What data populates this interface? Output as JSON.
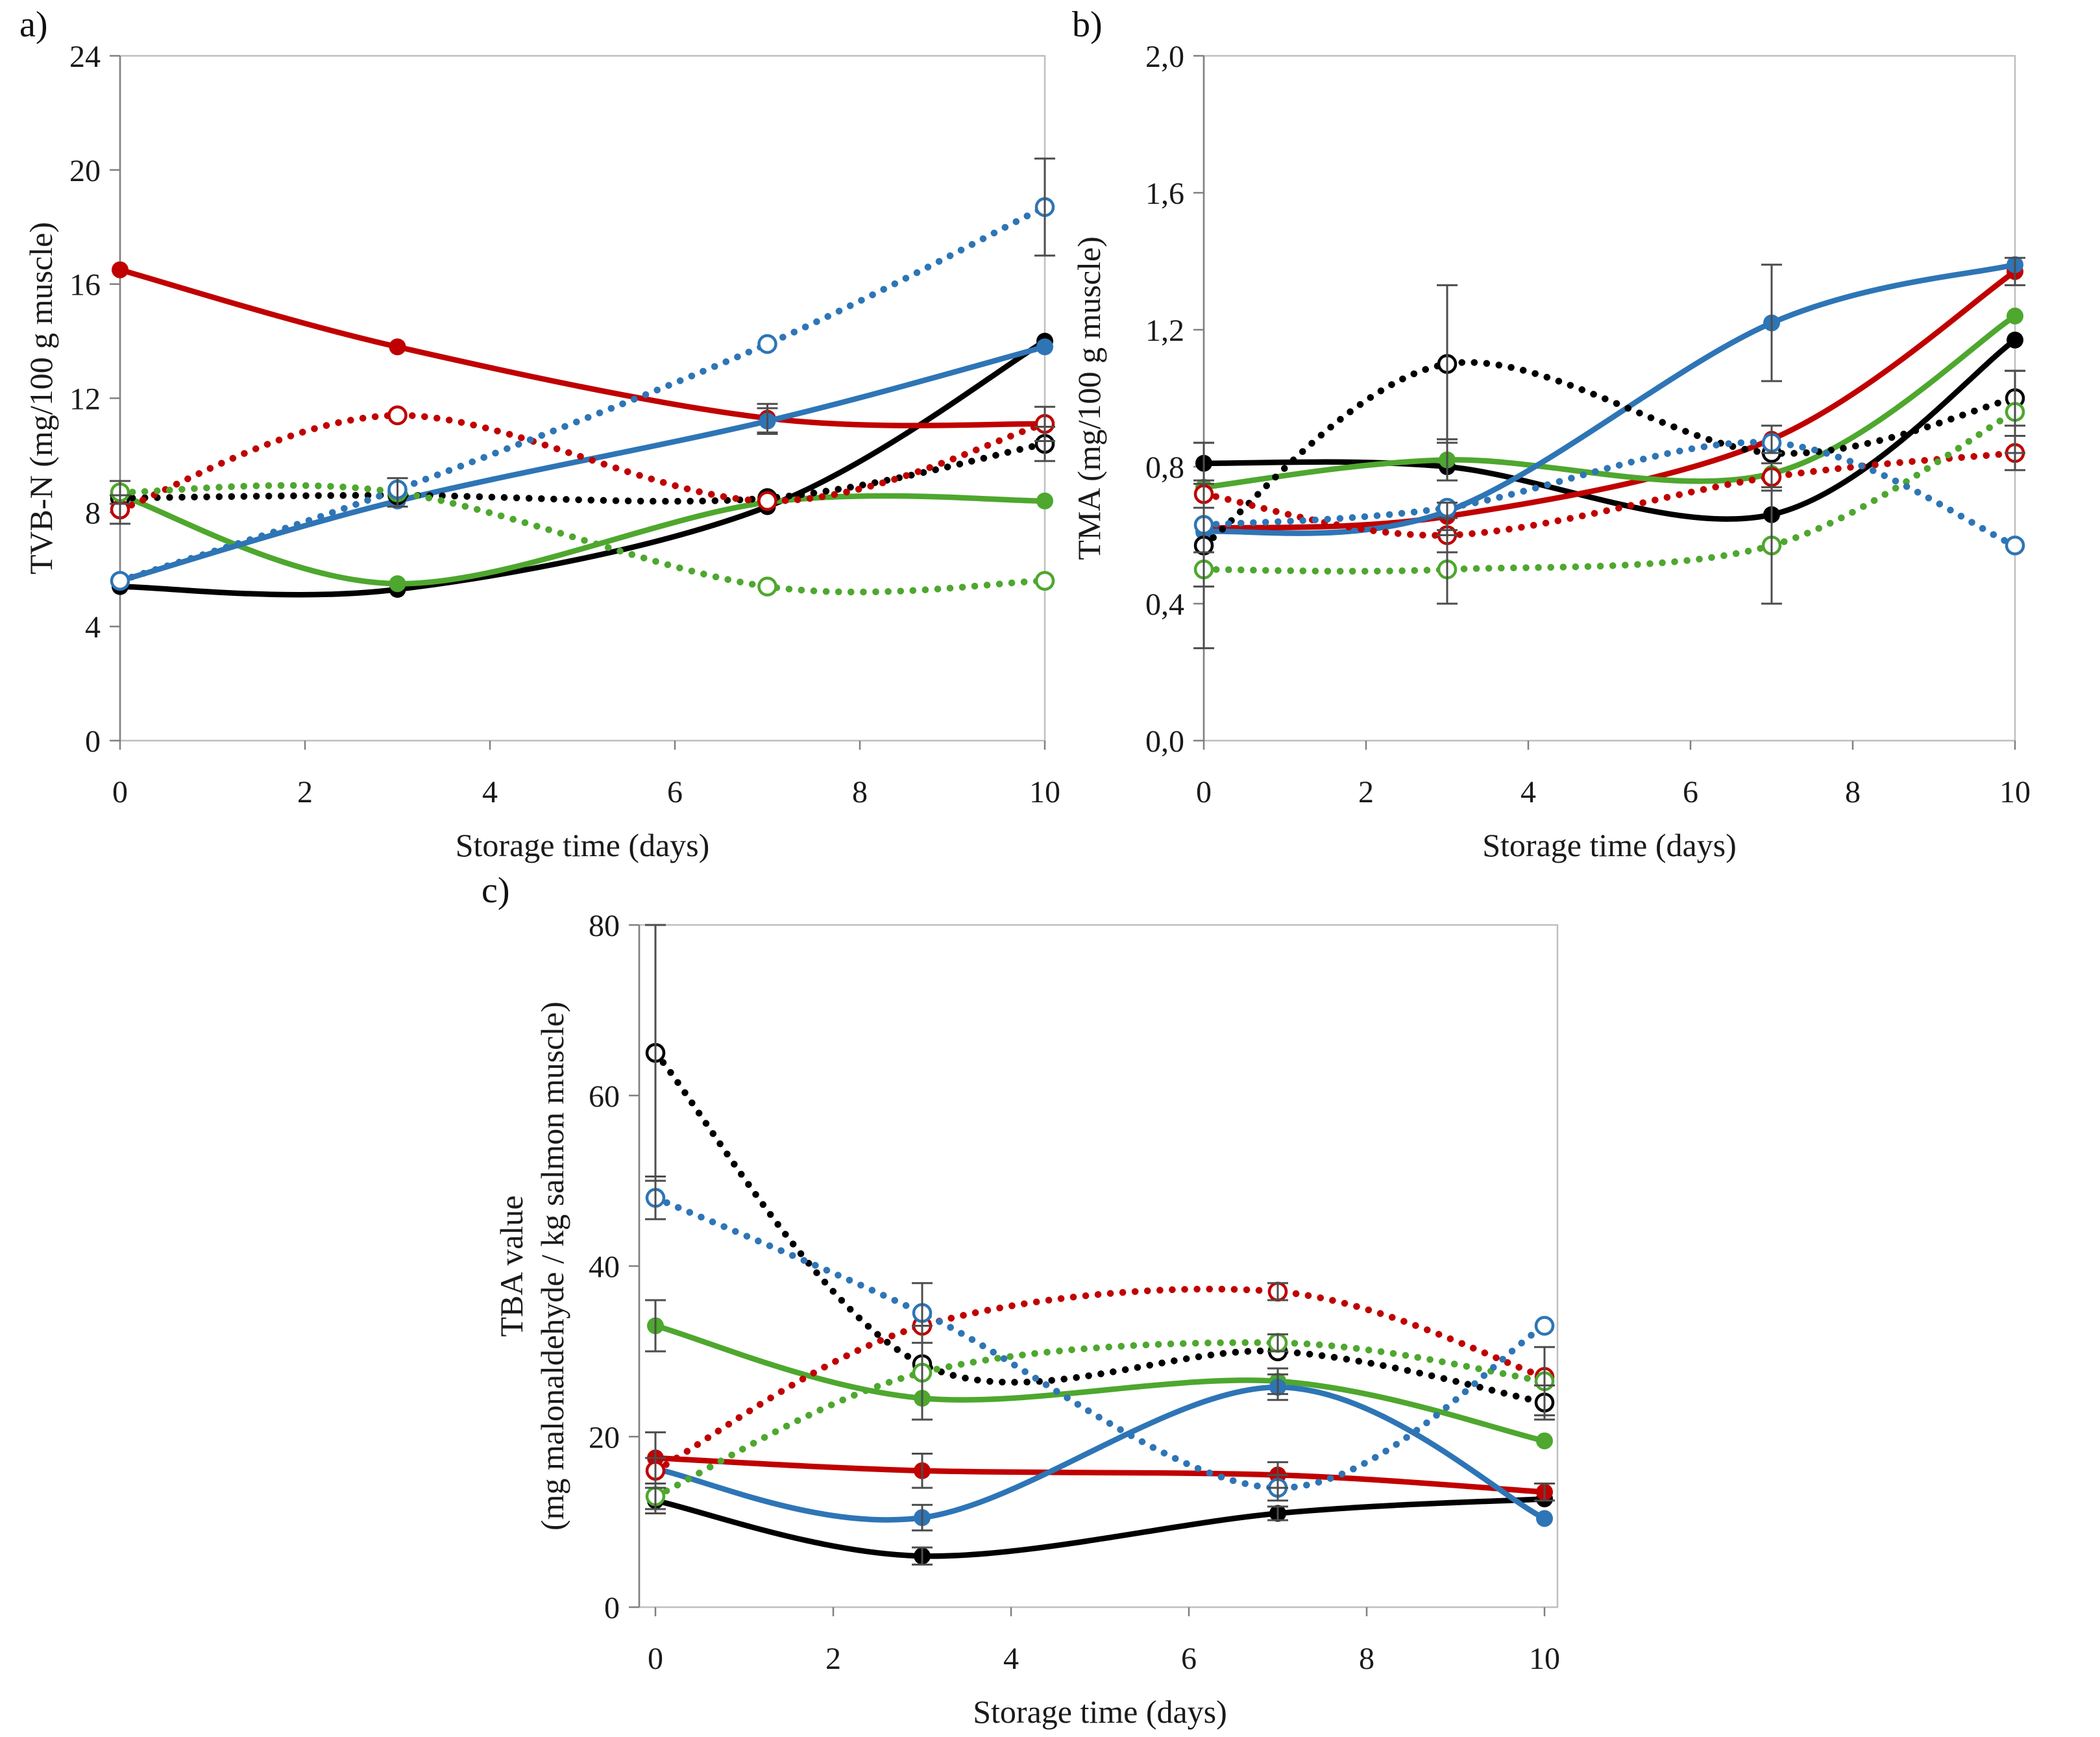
{
  "panels": [
    {
      "label": "a)"
    },
    {
      "label": "b)"
    },
    {
      "label": "c)"
    }
  ],
  "style": {
    "frame_color": "#bfbfbf",
    "axis_color": "#808080",
    "tick_text_color": "#1a1a1a",
    "error_bar_color": "#4d4d4d",
    "series_colors": {
      "black": "#000000",
      "red": "#c00000",
      "green": "#4ea72e",
      "blue": "#2e75b6"
    }
  },
  "chart_data": [
    {
      "type": "line",
      "panel": "a",
      "xlabel": "Storage time (days)",
      "ylabel": "TVB-N (mg/100 g muscle)",
      "ylabel_lines": [
        "TVB-N (mg/100 g muscle)"
      ],
      "x": [
        0,
        3,
        7,
        10
      ],
      "xlim": [
        0,
        10
      ],
      "ylim": [
        0,
        24
      ],
      "xticks": [
        0,
        2,
        4,
        6,
        8,
        10
      ],
      "xtick_labels": [
        "0",
        "2",
        "4",
        "6",
        "8",
        "10"
      ],
      "yticks": [
        0,
        4,
        8,
        12,
        16,
        20,
        24
      ],
      "ytick_labels": [
        "0",
        "4",
        "8",
        "12",
        "16",
        "20",
        "24"
      ],
      "grid": false,
      "legend": "none",
      "series": [
        {
          "name": "black-solid",
          "color": "black",
          "line": "solid",
          "marker": "filled",
          "values": [
            5.4,
            5.3,
            8.2,
            14.0
          ],
          "errors": [
            null,
            null,
            null,
            null
          ]
        },
        {
          "name": "red-solid",
          "color": "red",
          "line": "solid",
          "marker": "filled",
          "values": [
            16.5,
            13.8,
            11.3,
            11.1
          ],
          "errors": [
            null,
            null,
            0.5,
            null
          ]
        },
        {
          "name": "green-solid",
          "color": "green",
          "line": "solid",
          "marker": "filled",
          "values": [
            8.6,
            5.5,
            8.35,
            8.4
          ],
          "errors": [
            null,
            null,
            null,
            null
          ]
        },
        {
          "name": "blue-solid",
          "color": "blue",
          "line": "solid",
          "marker": "filled",
          "values": [
            5.6,
            8.4,
            11.2,
            13.8
          ],
          "errors": [
            null,
            null,
            0.45,
            null
          ]
        },
        {
          "name": "black-dotted",
          "color": "black",
          "line": "dotted",
          "marker": "open",
          "values": [
            8.5,
            8.6,
            8.5,
            10.4
          ],
          "errors": [
            null,
            null,
            null,
            0.6
          ]
        },
        {
          "name": "red-dotted",
          "color": "red",
          "line": "dotted",
          "marker": "open",
          "values": [
            8.1,
            11.4,
            8.4,
            11.1
          ],
          "errors": [
            0.5,
            null,
            null,
            0.6
          ]
        },
        {
          "name": "green-dotted",
          "color": "green",
          "line": "dotted",
          "marker": "open",
          "values": [
            8.7,
            8.7,
            5.4,
            5.6
          ],
          "errors": [
            0.4,
            0.5,
            null,
            null
          ]
        },
        {
          "name": "blue-dotted",
          "color": "blue",
          "line": "dotted",
          "marker": "open",
          "values": [
            5.6,
            8.8,
            13.9,
            18.7
          ],
          "errors": [
            null,
            null,
            null,
            1.7
          ]
        }
      ]
    },
    {
      "type": "line",
      "panel": "b",
      "xlabel": "Storage time (days)",
      "ylabel": "TMA (mg/100 g muscle)",
      "ylabel_lines": [
        "TMA (mg/100 g muscle)"
      ],
      "x": [
        0,
        3,
        7,
        10
      ],
      "xlim": [
        0,
        10
      ],
      "ylim": [
        0,
        2.0
      ],
      "xticks": [
        0,
        2,
        4,
        6,
        8,
        10
      ],
      "xtick_labels": [
        "0",
        "2",
        "4",
        "6",
        "8",
        "10"
      ],
      "yticks": [
        0,
        0.4,
        0.8,
        1.2,
        1.6,
        2.0
      ],
      "ytick_labels": [
        "0,0",
        "0,4",
        "0,8",
        "1,2",
        "1,6",
        "2,0"
      ],
      "grid": false,
      "legend": "none",
      "series": [
        {
          "name": "black-solid",
          "color": "black",
          "line": "solid",
          "marker": "filled",
          "values": [
            0.81,
            0.8,
            0.66,
            1.17
          ],
          "errors": [
            0.06,
            null,
            null,
            null
          ]
        },
        {
          "name": "red-solid",
          "color": "red",
          "line": "solid",
          "marker": "filled",
          "values": [
            0.62,
            0.655,
            0.88,
            1.37
          ],
          "errors": [
            null,
            0.04,
            0.04,
            0.04
          ]
        },
        {
          "name": "green-solid",
          "color": "green",
          "line": "solid",
          "marker": "filled",
          "values": [
            0.74,
            0.82,
            0.78,
            1.24
          ],
          "errors": [
            null,
            0.06,
            null,
            null
          ]
        },
        {
          "name": "blue-solid",
          "color": "blue",
          "line": "solid",
          "marker": "filled",
          "values": [
            0.61,
            0.67,
            1.22,
            1.39
          ],
          "errors": [
            null,
            null,
            0.17,
            null
          ]
        },
        {
          "name": "black-dotted",
          "color": "black",
          "line": "dotted",
          "marker": "open",
          "values": [
            0.57,
            1.1,
            0.84,
            1.0
          ],
          "errors": [
            0.3,
            0.23,
            null,
            0.08
          ]
        },
        {
          "name": "red-dotted",
          "color": "red",
          "line": "dotted",
          "marker": "open",
          "values": [
            0.72,
            0.6,
            0.77,
            0.84
          ],
          "errors": [
            0.04,
            0.05,
            0.04,
            0.05
          ]
        },
        {
          "name": "green-dotted",
          "color": "green",
          "line": "dotted",
          "marker": "open",
          "values": [
            0.5,
            0.5,
            0.57,
            0.96
          ],
          "errors": [
            0.05,
            0.1,
            0.17,
            0.12
          ]
        },
        {
          "name": "blue-dotted",
          "color": "blue",
          "line": "dotted",
          "marker": "open",
          "values": [
            0.63,
            0.68,
            0.87,
            0.57
          ],
          "errors": [
            null,
            null,
            null,
            null
          ]
        }
      ]
    },
    {
      "type": "line",
      "panel": "c",
      "xlabel": "Storage time (days)",
      "ylabel": "TBA value (mg malonaldehyde / kg salmon muscle)",
      "ylabel_lines": [
        "TBA value",
        "(mg malonaldehyde / kg salmon muscle)"
      ],
      "x": [
        0,
        3,
        7,
        10
      ],
      "xlim": [
        0,
        10
      ],
      "ylim": [
        0,
        80
      ],
      "xticks": [
        0,
        2,
        4,
        6,
        8,
        10
      ],
      "xtick_labels": [
        "0",
        "2",
        "4",
        "6",
        "8",
        "10"
      ],
      "yticks": [
        0,
        20,
        40,
        60,
        80
      ],
      "ytick_labels": [
        "0",
        "20",
        "40",
        "60",
        "80"
      ],
      "grid": false,
      "legend": "none",
      "series": [
        {
          "name": "black-solid",
          "color": "black",
          "line": "solid",
          "marker": "filled",
          "values": [
            12.5,
            6,
            11,
            12.7
          ],
          "errors": [
            1.5,
            1,
            0.8,
            null
          ]
        },
        {
          "name": "red-solid",
          "color": "red",
          "line": "solid",
          "marker": "filled",
          "values": [
            17.5,
            16,
            15.5,
            13.5
          ],
          "errors": [
            3,
            2,
            1.5,
            1
          ]
        },
        {
          "name": "green-solid",
          "color": "green",
          "line": "solid",
          "marker": "filled",
          "values": [
            33,
            24.5,
            26.5,
            19.5
          ],
          "errors": [
            3,
            null,
            1.5,
            null
          ]
        },
        {
          "name": "blue-solid",
          "color": "blue",
          "line": "solid",
          "marker": "filled",
          "values": [
            16.2,
            10.5,
            25.8,
            10.4
          ],
          "errors": [
            null,
            1.5,
            1.5,
            null
          ]
        },
        {
          "name": "black-dotted",
          "color": "black",
          "line": "dotted",
          "marker": "open",
          "values": [
            65,
            28.5,
            30,
            24
          ],
          "errors": [
            15,
            null,
            null,
            2
          ]
        },
        {
          "name": "red-dotted",
          "color": "red",
          "line": "dotted",
          "marker": "open",
          "values": [
            16,
            33,
            37,
            27
          ],
          "errors": [
            1.5,
            null,
            1,
            null
          ]
        },
        {
          "name": "green-dotted",
          "color": "green",
          "line": "dotted",
          "marker": "open",
          "values": [
            13,
            27.5,
            31,
            26.5
          ],
          "errors": [
            1.5,
            5.5,
            1,
            4
          ]
        },
        {
          "name": "blue-dotted",
          "color": "blue",
          "line": "dotted",
          "marker": "open",
          "values": [
            48,
            34.5,
            14,
            33
          ],
          "errors": [
            2.5,
            3.5,
            1.5,
            null
          ]
        }
      ]
    }
  ]
}
